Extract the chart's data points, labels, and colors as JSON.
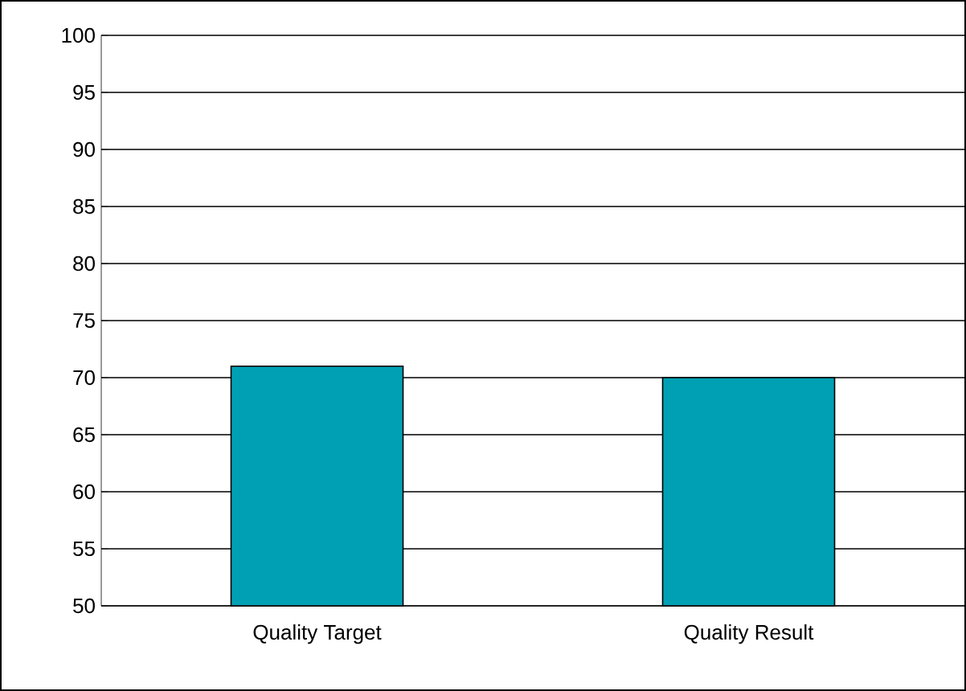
{
  "chart_data": {
    "type": "bar",
    "categories": [
      "Quality Target",
      "Quality Result"
    ],
    "values": [
      71,
      70
    ],
    "color": "#00a0b4",
    "ylim": [
      50,
      100
    ],
    "yticks": [
      50,
      55,
      60,
      65,
      70,
      75,
      80,
      85,
      90,
      95,
      100
    ],
    "grid": "y"
  }
}
